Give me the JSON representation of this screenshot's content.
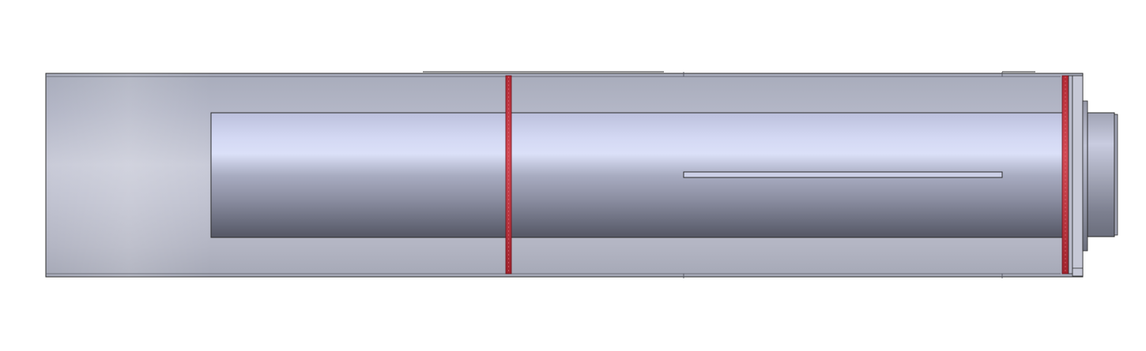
{
  "view": {
    "kind": "cad-side-view",
    "background": "#ffffff"
  },
  "model": {
    "outer_shell_color": "#b9bcc9",
    "inner_tube_color": "#c9cde6",
    "ring_color": "#c4323c",
    "end_cap_color": "#a6a9b6",
    "outline_color": "#2b2b2b"
  }
}
